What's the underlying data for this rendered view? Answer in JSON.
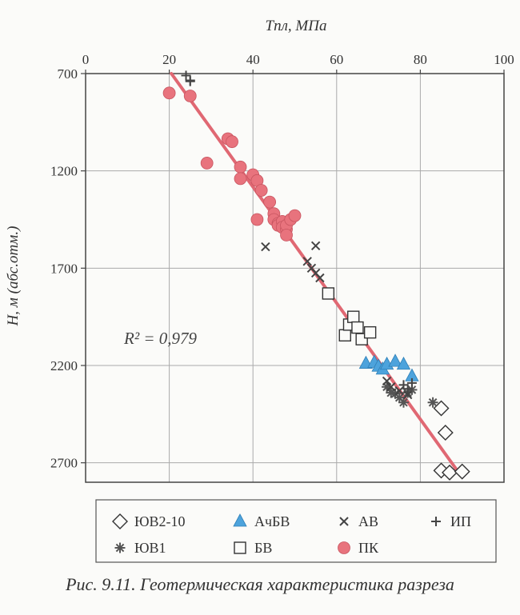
{
  "caption": "Рис. 9.11. Геотермическая характеристика разреза",
  "chart_data": {
    "type": "scatter",
    "title": "",
    "xlabel": "Tпл, МПа",
    "ylabel": "H, м (абс.отм.)",
    "xlim": [
      0,
      100
    ],
    "ylim": [
      2800,
      700
    ],
    "y_inverted": true,
    "x_ticks": [
      0,
      20,
      40,
      60,
      80,
      100
    ],
    "y_ticks": [
      700,
      1200,
      1700,
      2200,
      2700
    ],
    "x_tick_labels": [
      "0",
      "20",
      "40",
      "60",
      "80",
      "100"
    ],
    "y_tick_labels": [
      "700",
      "1200",
      "1700",
      "2200",
      "2700"
    ],
    "grid": true,
    "x_axis_position": "top",
    "legend_position": "bottom",
    "annotation": "R² = 0,979",
    "trend_line": {
      "x": [
        20.5,
        89
      ],
      "y": [
        700,
        2745
      ],
      "color": "#e06873"
    },
    "series": [
      {
        "name": "ЮВ2-10",
        "marker": "diamond-open",
        "color": "#333333",
        "points": [
          [
            85,
            2420
          ],
          [
            86,
            2545
          ],
          [
            85,
            2740
          ],
          [
            87,
            2750
          ],
          [
            90,
            2745
          ]
        ]
      },
      {
        "name": "ЮВ1",
        "marker": "asterisk",
        "color": "#555555",
        "points": [
          [
            83,
            2390
          ],
          [
            72,
            2310
          ],
          [
            73,
            2340
          ],
          [
            74,
            2345
          ],
          [
            75,
            2365
          ],
          [
            76,
            2390
          ],
          [
            77,
            2340
          ],
          [
            78,
            2325
          ]
        ]
      },
      {
        "name": "АчБВ",
        "marker": "triangle",
        "color": "#4da3dc",
        "points": [
          [
            67,
            2190
          ],
          [
            69,
            2185
          ],
          [
            70,
            2205
          ],
          [
            71,
            2220
          ],
          [
            72,
            2195
          ],
          [
            74,
            2180
          ],
          [
            76,
            2195
          ],
          [
            78,
            2255
          ]
        ]
      },
      {
        "name": "БВ",
        "marker": "square-open",
        "color": "#333333",
        "points": [
          [
            58,
            1830
          ],
          [
            62,
            2045
          ],
          [
            63,
            1990
          ],
          [
            64,
            1950
          ],
          [
            65,
            2005
          ],
          [
            66,
            2065
          ],
          [
            68,
            2030
          ]
        ]
      },
      {
        "name": "АВ",
        "marker": "x",
        "color": "#444444",
        "points": [
          [
            43,
            1590
          ],
          [
            55,
            1585
          ],
          [
            53,
            1665
          ],
          [
            54,
            1700
          ],
          [
            55,
            1725
          ],
          [
            56,
            1750
          ],
          [
            72,
            2280
          ],
          [
            73,
            2310
          ],
          [
            75,
            2330
          ],
          [
            77,
            2350
          ]
        ]
      },
      {
        "name": "ИП",
        "marker": "plus",
        "color": "#444444",
        "points": [
          [
            24,
            710
          ],
          [
            25,
            735
          ],
          [
            25,
            740
          ],
          [
            76,
            2300
          ],
          [
            77,
            2320
          ],
          [
            78,
            2290
          ]
        ]
      },
      {
        "name": "ПК",
        "marker": "circle",
        "color": "#e8737d",
        "points": [
          [
            20,
            800
          ],
          [
            25,
            815
          ],
          [
            34,
            1035
          ],
          [
            35,
            1050
          ],
          [
            29,
            1160
          ],
          [
            37,
            1180
          ],
          [
            37,
            1240
          ],
          [
            40,
            1220
          ],
          [
            41,
            1250
          ],
          [
            42,
            1300
          ],
          [
            44,
            1360
          ],
          [
            45,
            1420
          ],
          [
            45,
            1450
          ],
          [
            46,
            1470
          ],
          [
            46,
            1480
          ],
          [
            47,
            1460
          ],
          [
            47,
            1490
          ],
          [
            48,
            1500
          ],
          [
            48,
            1480
          ],
          [
            49,
            1450
          ],
          [
            50,
            1430
          ],
          [
            48,
            1530
          ],
          [
            41,
            1450
          ]
        ]
      }
    ]
  },
  "legend": {
    "items": [
      {
        "label": "ЮВ2-10",
        "marker": "diamond-open"
      },
      {
        "label": "АчБВ",
        "marker": "triangle"
      },
      {
        "label": "АВ",
        "marker": "x"
      },
      {
        "label": "ИП",
        "marker": "plus"
      },
      {
        "label": "ЮВ1",
        "marker": "asterisk"
      },
      {
        "label": "БВ",
        "marker": "square-open"
      },
      {
        "label": "ПК",
        "marker": "circle"
      }
    ]
  }
}
